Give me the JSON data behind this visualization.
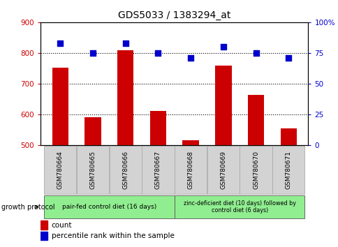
{
  "title": "GDS5033 / 1383294_at",
  "samples": [
    "GSM780664",
    "GSM780665",
    "GSM780666",
    "GSM780667",
    "GSM780668",
    "GSM780669",
    "GSM780670",
    "GSM780671"
  ],
  "counts": [
    752,
    591,
    808,
    611,
    516,
    758,
    664,
    555
  ],
  "percentiles": [
    83,
    75,
    83,
    75,
    71,
    80,
    75,
    71
  ],
  "ylim_left": [
    500,
    900
  ],
  "ylim_right": [
    0,
    100
  ],
  "yticks_left": [
    500,
    600,
    700,
    800,
    900
  ],
  "yticks_right": [
    0,
    25,
    50,
    75,
    100
  ],
  "bar_color": "#cc0000",
  "dot_color": "#0000cc",
  "title_color": "#000000",
  "left_tick_color": "#cc0000",
  "right_tick_color": "#0000cc",
  "group1_label": "pair-fed control diet (16 days)",
  "group2_label": "zinc-deficient diet (10 days) followed by\ncontrol diet (6 days)",
  "group1_color": "#90ee90",
  "group2_color": "#90ee90",
  "protocol_label": "growth protocol",
  "legend_count": "count",
  "legend_percentile": "percentile rank within the sample",
  "bg_color": "#ffffff",
  "xlabel_bg_color": "#d3d3d3",
  "bar_width": 0.5,
  "n_group1": 4,
  "n_group2": 4
}
